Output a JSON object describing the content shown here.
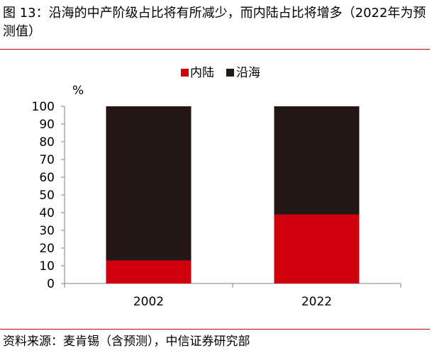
{
  "figure": {
    "title": "图 13：沿海的中产阶级占比将有所减少，而内陆占比将增多（2022年为预测值）",
    "source": "资料来源：麦肯锡（含预测），中信证券研究部"
  },
  "colors": {
    "inland": "#d0000d",
    "coastal": "#221714",
    "rule": "#c00000",
    "axis": "#7f7f7f"
  },
  "chart_data": {
    "type": "bar",
    "stacked": true,
    "title": "",
    "ylabel": "%",
    "xlabel": "",
    "ylim": [
      0,
      100
    ],
    "yticks": [
      0,
      10,
      20,
      30,
      40,
      50,
      60,
      70,
      80,
      90,
      100
    ],
    "legend_position": "top",
    "categories": [
      "2002",
      "2022"
    ],
    "series": [
      {
        "name": "内陆",
        "color_key": "inland",
        "values": [
          13,
          39
        ]
      },
      {
        "name": "沿海",
        "color_key": "coastal",
        "values": [
          87,
          61
        ]
      }
    ]
  }
}
